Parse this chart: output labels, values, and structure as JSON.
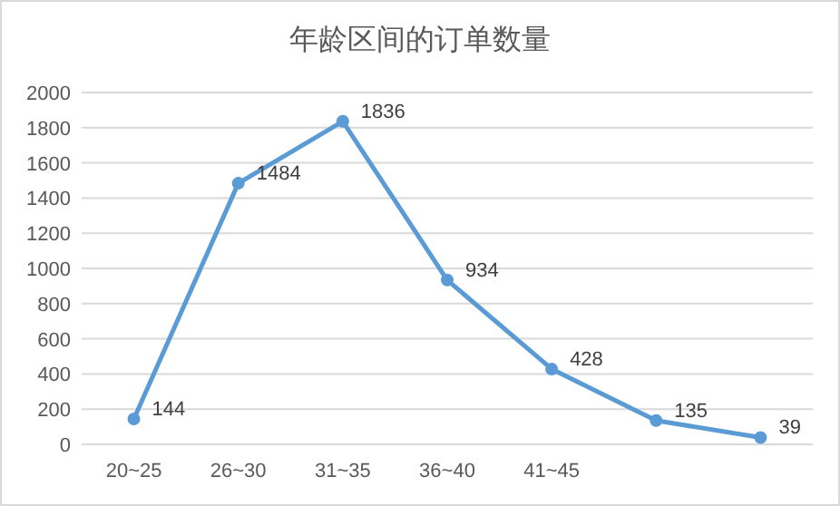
{
  "chart_data": {
    "type": "line",
    "title": "年龄区间的订单数量",
    "categories": [
      "20~25",
      "26~30",
      "31~35",
      "36~40",
      "41~45",
      null,
      null
    ],
    "values": [
      144,
      1484,
      1836,
      934,
      428,
      135,
      39
    ],
    "color": "#5b9bd5",
    "ylim": [
      0,
      2000
    ],
    "yticks": [
      0,
      200,
      400,
      600,
      800,
      1000,
      1200,
      1400,
      1600,
      1800,
      2000
    ],
    "grid": "y",
    "marker": "circle",
    "data_labels": true
  }
}
